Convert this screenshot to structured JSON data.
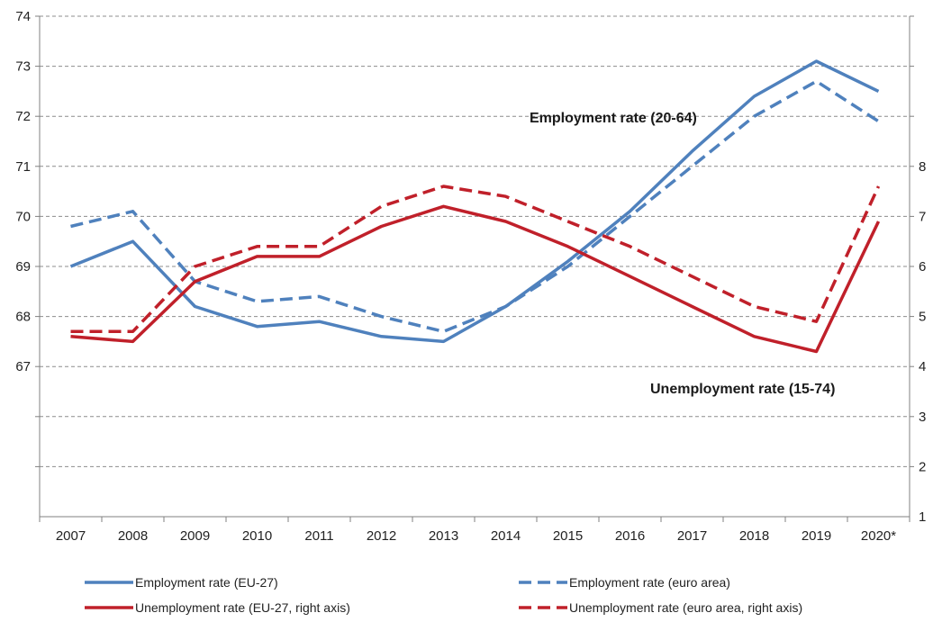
{
  "chart_data": {
    "type": "line",
    "categories": [
      "2007",
      "2008",
      "2009",
      "2010",
      "2011",
      "2012",
      "2013",
      "2014",
      "2015",
      "2016",
      "2017",
      "2018",
      "2019",
      "2020*"
    ],
    "left_axis": {
      "ylim": [
        64,
        74
      ],
      "ticks": [
        67,
        68,
        69,
        70,
        71,
        72,
        73,
        74
      ]
    },
    "right_axis": {
      "ylim": [
        1,
        11
      ],
      "ticks": [
        1,
        2,
        3,
        4,
        5,
        6,
        7,
        8
      ]
    },
    "grid": "horizontal-dashed",
    "legend_position": "bottom",
    "series": [
      {
        "name": "Employment rate (EU-27)",
        "axis": "left",
        "color": "#4f81bd",
        "dash": "solid",
        "values": [
          69.0,
          69.5,
          68.2,
          67.8,
          67.9,
          67.6,
          67.5,
          68.2,
          69.1,
          70.1,
          71.3,
          72.4,
          73.1,
          72.5
        ]
      },
      {
        "name": "Employment rate (euro area)",
        "axis": "left",
        "color": "#4f81bd",
        "dash": "dashed",
        "values": [
          69.8,
          70.1,
          68.7,
          68.3,
          68.4,
          68.0,
          67.7,
          68.2,
          69.0,
          70.0,
          71.0,
          72.0,
          72.7,
          71.9
        ]
      },
      {
        "name": "Unemployment rate (EU-27, right axis)",
        "axis": "right",
        "color": "#c0202a",
        "dash": "solid",
        "values": [
          4.6,
          4.5,
          5.7,
          6.2,
          6.2,
          6.8,
          7.2,
          6.9,
          6.4,
          5.8,
          5.2,
          4.6,
          4.3,
          6.9
        ]
      },
      {
        "name": "Unemployment rate (euro area, right axis)",
        "axis": "right",
        "color": "#c0202a",
        "dash": "dashed",
        "values": [
          4.7,
          4.7,
          6.0,
          6.4,
          6.4,
          7.2,
          7.6,
          7.4,
          6.9,
          6.4,
          5.8,
          5.2,
          4.9,
          7.6
        ]
      }
    ],
    "annotations": [
      {
        "text": "Employment rate (20-64)"
      },
      {
        "text": "Unemployment rate (15-74)"
      }
    ]
  }
}
